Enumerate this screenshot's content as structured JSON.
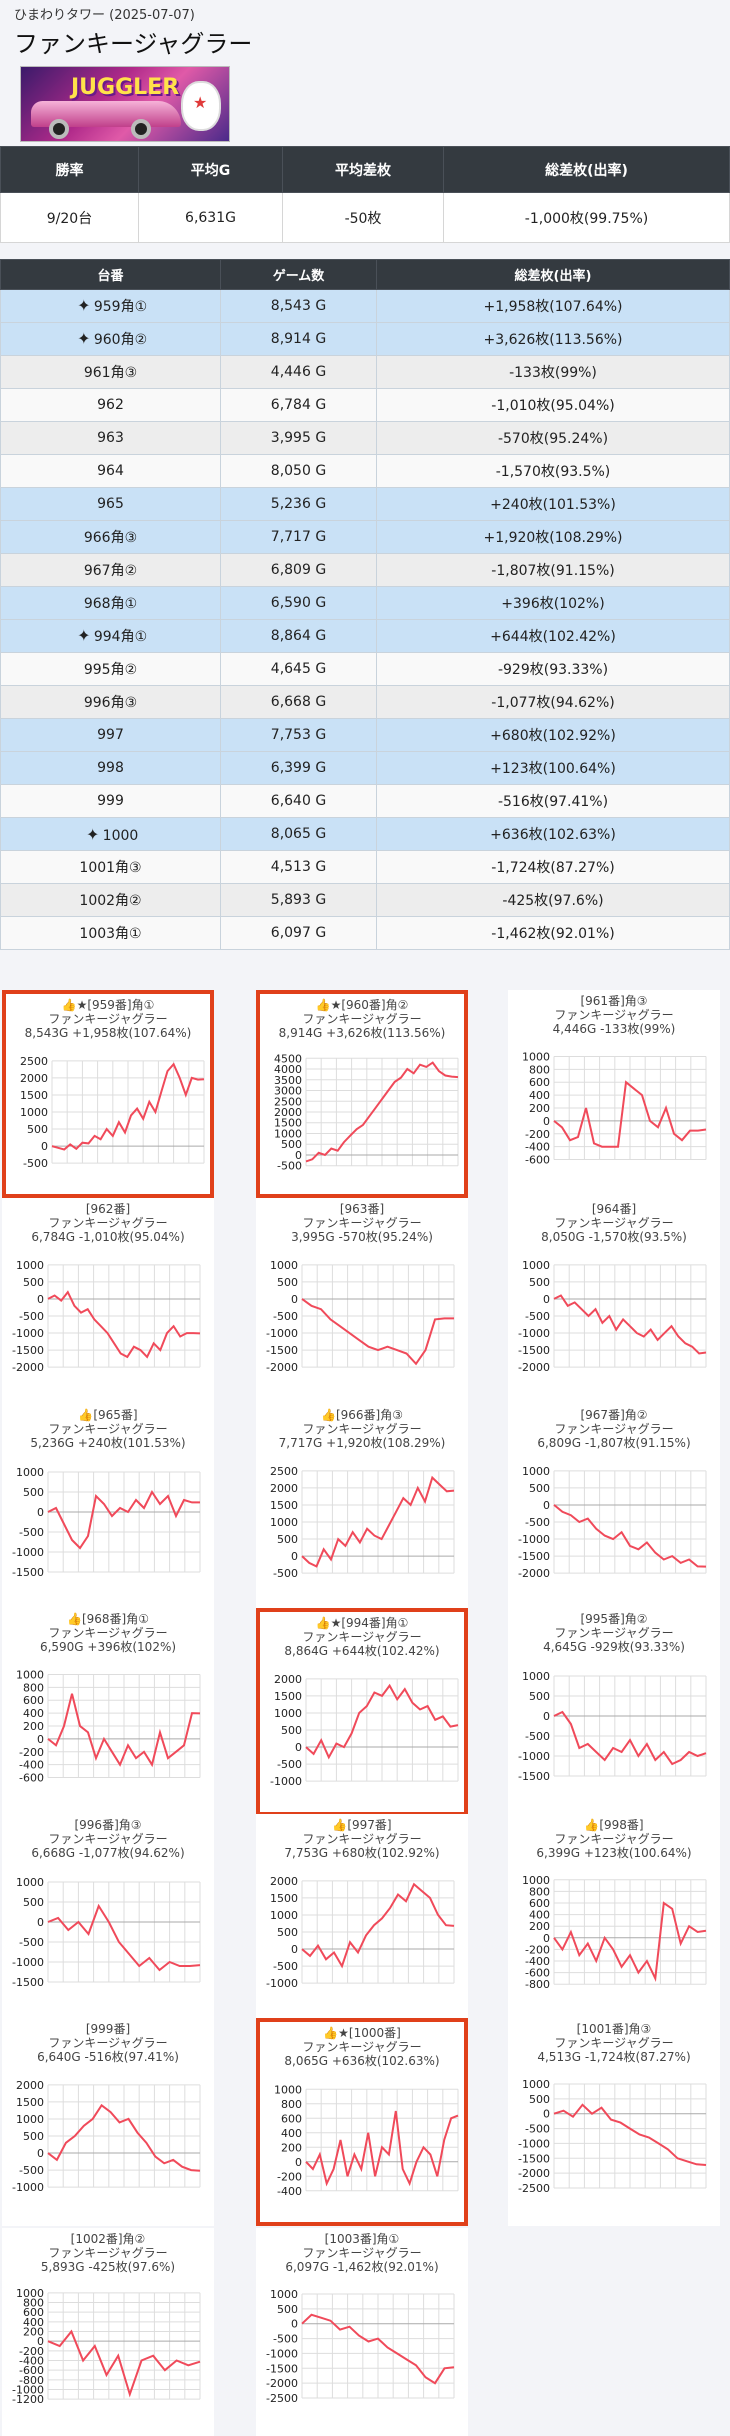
{
  "header": {
    "subtitle": "ひまわりタワー (2025-07-07)",
    "title": "ファンキージャグラー"
  },
  "summary": {
    "headers": [
      "勝率",
      "平均G",
      "平均差枚",
      "総差枚(出率)"
    ],
    "values": [
      "9/20台",
      "6,631G",
      "-50枚",
      "-1,000枚(99.75%)"
    ]
  },
  "detail": {
    "headers": [
      "台番",
      "ゲーム数",
      "総差枚(出率)"
    ],
    "rows": [
      {
        "name": "959角①",
        "games": "8,543 G",
        "diff": "+1,958枚(107.64%)",
        "spark": true,
        "pos": true
      },
      {
        "name": "960角②",
        "games": "8,914 G",
        "diff": "+3,626枚(113.56%)",
        "spark": true,
        "pos": true
      },
      {
        "name": "961角③",
        "games": "4,446 G",
        "diff": "-133枚(99%)",
        "spark": false,
        "pos": false
      },
      {
        "name": "962",
        "games": "6,784 G",
        "diff": "-1,010枚(95.04%)",
        "spark": false,
        "pos": false
      },
      {
        "name": "963",
        "games": "3,995 G",
        "diff": "-570枚(95.24%)",
        "spark": false,
        "pos": false
      },
      {
        "name": "964",
        "games": "8,050 G",
        "diff": "-1,570枚(93.5%)",
        "spark": false,
        "pos": false
      },
      {
        "name": "965",
        "games": "5,236 G",
        "diff": "+240枚(101.53%)",
        "spark": false,
        "pos": true
      },
      {
        "name": "966角③",
        "games": "7,717 G",
        "diff": "+1,920枚(108.29%)",
        "spark": false,
        "pos": true
      },
      {
        "name": "967角②",
        "games": "6,809 G",
        "diff": "-1,807枚(91.15%)",
        "spark": false,
        "pos": false
      },
      {
        "name": "968角①",
        "games": "6,590 G",
        "diff": "+396枚(102%)",
        "spark": false,
        "pos": true
      },
      {
        "name": "994角①",
        "games": "8,864 G",
        "diff": "+644枚(102.42%)",
        "spark": true,
        "pos": true
      },
      {
        "name": "995角②",
        "games": "4,645 G",
        "diff": "-929枚(93.33%)",
        "spark": false,
        "pos": false
      },
      {
        "name": "996角③",
        "games": "6,668 G",
        "diff": "-1,077枚(94.62%)",
        "spark": false,
        "pos": false
      },
      {
        "name": "997",
        "games": "7,753 G",
        "diff": "+680枚(102.92%)",
        "spark": false,
        "pos": true
      },
      {
        "name": "998",
        "games": "6,399 G",
        "diff": "+123枚(100.64%)",
        "spark": false,
        "pos": true
      },
      {
        "name": "999",
        "games": "6,640 G",
        "diff": "-516枚(97.41%)",
        "spark": false,
        "pos": false
      },
      {
        "name": "1000",
        "games": "8,065 G",
        "diff": "+636枚(102.63%)",
        "spark": true,
        "pos": true
      },
      {
        "name": "1001角③",
        "games": "4,513 G",
        "diff": "-1,724枚(87.27%)",
        "spark": false,
        "pos": false
      },
      {
        "name": "1002角②",
        "games": "5,893 G",
        "diff": "-425枚(97.6%)",
        "spark": false,
        "pos": false
      },
      {
        "name": "1003角①",
        "games": "6,097 G",
        "diff": "-1,462枚(92.01%)",
        "spark": false,
        "pos": false
      }
    ]
  },
  "colors": {
    "line": "#f04a5a",
    "highlight": "#e0401a",
    "positive_row": "#c9e1f6",
    "header_bg": "#343a40"
  },
  "chart_data": [
    {
      "type": "line",
      "title": "👍★[959番]角①",
      "subtitle": "ファンキージャグラー",
      "stats": "8,543G +1,958枚(107.64%)",
      "highlight": true,
      "yticks": [
        2500,
        2000,
        1500,
        1000,
        500,
        0,
        -500
      ],
      "ylim": [
        -700,
        2700
      ],
      "values": [
        0,
        -50,
        -100,
        50,
        -80,
        100,
        80,
        300,
        200,
        500,
        300,
        700,
        400,
        900,
        1100,
        800,
        1300,
        1000,
        1600,
        2200,
        2400,
        2000,
        1500,
        2000,
        1950,
        1958
      ]
    },
    {
      "type": "line",
      "title": "👍★[960番]角②",
      "subtitle": "ファンキージャグラー",
      "stats": "8,914G +3,626枚(113.56%)",
      "highlight": true,
      "yticks": [
        4500,
        4000,
        3500,
        3000,
        2500,
        2000,
        1500,
        1000,
        500,
        0,
        -500
      ],
      "ylim": [
        -700,
        4700
      ],
      "values": [
        -300,
        -200,
        100,
        0,
        300,
        200,
        600,
        900,
        1200,
        1400,
        1800,
        2200,
        2600,
        3000,
        3400,
        3600,
        4000,
        3800,
        4200,
        4100,
        4300,
        3900,
        3700,
        3650,
        3626
      ]
    },
    {
      "type": "line",
      "title": "[961番]角③",
      "subtitle": "ファンキージャグラー",
      "stats": "4,446G -133枚(99%)",
      "highlight": false,
      "yticks": [
        1000,
        800,
        600,
        400,
        200,
        0,
        -200,
        -400,
        -600
      ],
      "ylim": [
        -700,
        1100
      ],
      "values": [
        0,
        -100,
        -300,
        -250,
        200,
        -350,
        -400,
        -400,
        -400,
        600,
        500,
        400,
        0,
        -100,
        200,
        -200,
        -300,
        -150,
        -150,
        -133
      ]
    },
    {
      "type": "line",
      "title": "[962番]",
      "subtitle": "ファンキージャグラー",
      "stats": "6,784G -1,010枚(95.04%)",
      "highlight": false,
      "yticks": [
        1000,
        500,
        0,
        -500,
        -1000,
        -1500,
        -2000
      ],
      "ylim": [
        -2200,
        1200
      ],
      "values": [
        0,
        100,
        -50,
        200,
        -200,
        -400,
        -300,
        -600,
        -800,
        -1000,
        -1300,
        -1600,
        -1700,
        -1400,
        -1500,
        -1700,
        -1300,
        -1500,
        -1000,
        -800,
        -1100,
        -1000,
        -1000,
        -1010
      ]
    },
    {
      "type": "line",
      "title": "[963番]",
      "subtitle": "ファンキージャグラー",
      "stats": "3,995G -570枚(95.24%)",
      "highlight": false,
      "yticks": [
        1000,
        500,
        0,
        -500,
        -1000,
        -1500,
        -2000
      ],
      "ylim": [
        -2200,
        1200
      ],
      "values": [
        0,
        -200,
        -300,
        -600,
        -800,
        -1000,
        -1200,
        -1400,
        -1500,
        -1400,
        -1500,
        -1600,
        -1900,
        -1500,
        -600,
        -570,
        -570
      ]
    },
    {
      "type": "line",
      "title": "[964番]",
      "subtitle": "ファンキージャグラー",
      "stats": "8,050G -1,570枚(93.5%)",
      "highlight": false,
      "yticks": [
        1000,
        500,
        0,
        -500,
        -1000,
        -1500,
        -2000
      ],
      "ylim": [
        -2200,
        1200
      ],
      "values": [
        0,
        100,
        -200,
        -100,
        -300,
        -500,
        -300,
        -700,
        -500,
        -900,
        -600,
        -800,
        -1000,
        -1100,
        -900,
        -1200,
        -1000,
        -800,
        -1100,
        -1300,
        -1400,
        -1600,
        -1570
      ]
    },
    {
      "type": "line",
      "title": "👍[965番]",
      "subtitle": "ファンキージャグラー",
      "stats": "5,236G +240枚(101.53%)",
      "highlight": false,
      "yticks": [
        1000,
        500,
        0,
        -500,
        -1000,
        -1500
      ],
      "ylim": [
        -1700,
        1200
      ],
      "values": [
        0,
        100,
        -300,
        -700,
        -900,
        -600,
        400,
        200,
        -100,
        100,
        0,
        300,
        100,
        500,
        200,
        400,
        -100,
        300,
        240,
        240
      ]
    },
    {
      "type": "line",
      "title": "👍[966番]角③",
      "subtitle": "ファンキージャグラー",
      "stats": "7,717G +1,920枚(108.29%)",
      "highlight": false,
      "yticks": [
        2500,
        2000,
        1500,
        1000,
        500,
        0,
        -500
      ],
      "ylim": [
        -700,
        2700
      ],
      "values": [
        0,
        -200,
        -300,
        200,
        -100,
        500,
        300,
        700,
        400,
        800,
        600,
        500,
        900,
        1300,
        1700,
        1500,
        2000,
        1600,
        2300,
        2100,
        1900,
        1920
      ]
    },
    {
      "type": "line",
      "title": "[967番]角②",
      "subtitle": "ファンキージャグラー",
      "stats": "6,809G -1,807枚(91.15%)",
      "highlight": false,
      "yticks": [
        1000,
        500,
        0,
        -500,
        -1000,
        -1500,
        -2000
      ],
      "ylim": [
        -2200,
        1200
      ],
      "values": [
        0,
        -200,
        -300,
        -500,
        -400,
        -700,
        -900,
        -1000,
        -800,
        -1200,
        -1300,
        -1100,
        -1400,
        -1600,
        -1500,
        -1700,
        -1600,
        -1800,
        -1807
      ]
    },
    {
      "type": "line",
      "title": "👍[968番]角①",
      "subtitle": "ファンキージャグラー",
      "stats": "6,590G +396枚(102%)",
      "highlight": false,
      "yticks": [
        1000,
        800,
        600,
        400,
        200,
        0,
        -200,
        -400,
        -600
      ],
      "ylim": [
        -700,
        1100
      ],
      "values": [
        0,
        -100,
        200,
        700,
        200,
        100,
        -300,
        0,
        -200,
        -400,
        -100,
        -300,
        -200,
        -400,
        100,
        -300,
        -200,
        -100,
        400,
        396
      ]
    },
    {
      "type": "line",
      "title": "👍★[994番]角①",
      "subtitle": "ファンキージャグラー",
      "stats": "8,864G +644枚(102.42%)",
      "highlight": true,
      "yticks": [
        2000,
        1500,
        1000,
        500,
        0,
        -500,
        -1000
      ],
      "ylim": [
        -1200,
        2200
      ],
      "values": [
        0,
        -200,
        200,
        -300,
        100,
        0,
        400,
        1000,
        1200,
        1600,
        1500,
        1800,
        1400,
        1700,
        1300,
        1100,
        1200,
        800,
        900,
        600,
        644
      ]
    },
    {
      "type": "line",
      "title": "[995番]角②",
      "subtitle": "ファンキージャグラー",
      "stats": "4,645G -929枚(93.33%)",
      "highlight": false,
      "yticks": [
        1000,
        500,
        0,
        -500,
        -1000,
        -1500
      ],
      "ylim": [
        -1700,
        1200
      ],
      "values": [
        0,
        100,
        -200,
        -800,
        -700,
        -900,
        -1100,
        -800,
        -900,
        -600,
        -1000,
        -700,
        -1100,
        -900,
        -1200,
        -1100,
        -900,
        -1000,
        -929
      ]
    },
    {
      "type": "line",
      "title": "[996番]角③",
      "subtitle": "ファンキージャグラー",
      "stats": "6,668G -1,077枚(94.62%)",
      "highlight": false,
      "yticks": [
        1000,
        500,
        0,
        -500,
        -1000,
        -1500
      ],
      "ylim": [
        -1700,
        1200
      ],
      "values": [
        0,
        100,
        -200,
        0,
        -300,
        400,
        0,
        -500,
        -800,
        -1100,
        -900,
        -1200,
        -1000,
        -1100,
        -1100,
        -1077
      ]
    },
    {
      "type": "line",
      "title": "👍[997番]",
      "subtitle": "ファンキージャグラー",
      "stats": "7,753G +680枚(102.92%)",
      "highlight": false,
      "yticks": [
        2000,
        1500,
        1000,
        500,
        0,
        -500,
        -1000
      ],
      "ylim": [
        -1200,
        2200
      ],
      "values": [
        0,
        -200,
        100,
        -300,
        -100,
        -500,
        200,
        -100,
        400,
        700,
        900,
        1200,
        1600,
        1400,
        1900,
        1700,
        1500,
        1000,
        700,
        680
      ]
    },
    {
      "type": "line",
      "title": "👍[998番]",
      "subtitle": "ファンキージャグラー",
      "stats": "6,399G +123枚(100.64%)",
      "highlight": false,
      "yticks": [
        1000,
        800,
        600,
        400,
        200,
        0,
        -200,
        -400,
        -600,
        -800
      ],
      "ylim": [
        -900,
        1100
      ],
      "values": [
        0,
        -200,
        100,
        -300,
        -100,
        -400,
        0,
        -200,
        -500,
        -300,
        -600,
        -400,
        -700,
        600,
        500,
        -100,
        200,
        100,
        123
      ]
    },
    {
      "type": "line",
      "title": "[999番]",
      "subtitle": "ファンキージャグラー",
      "stats": "6,640G -516枚(97.41%)",
      "highlight": false,
      "yticks": [
        2000,
        1500,
        1000,
        500,
        0,
        -500,
        -1000
      ],
      "ylim": [
        -1200,
        2200
      ],
      "values": [
        0,
        -200,
        300,
        500,
        800,
        1000,
        1400,
        1200,
        900,
        1000,
        600,
        300,
        -100,
        -300,
        -200,
        -400,
        -500,
        -516
      ]
    },
    {
      "type": "line",
      "title": "👍★[1000番]",
      "subtitle": "ファンキージャグラー",
      "stats": "8,065G +636枚(102.63%)",
      "highlight": true,
      "yticks": [
        1000,
        800,
        600,
        400,
        200,
        0,
        -200,
        -400
      ],
      "ylim": [
        -500,
        1100
      ],
      "values": [
        0,
        -100,
        100,
        -300,
        -100,
        300,
        -200,
        100,
        -100,
        400,
        -200,
        200,
        100,
        700,
        -100,
        -300,
        0,
        200,
        100,
        -200,
        300,
        600,
        636
      ]
    },
    {
      "type": "line",
      "title": "[1001番]角③",
      "subtitle": "ファンキージャグラー",
      "stats": "4,513G -1,724枚(87.27%)",
      "highlight": false,
      "yticks": [
        1000,
        500,
        0,
        -500,
        -1000,
        -1500,
        -2000,
        -2500
      ],
      "ylim": [
        -2700,
        1200
      ],
      "values": [
        0,
        100,
        -100,
        300,
        0,
        200,
        -200,
        -300,
        -500,
        -700,
        -800,
        -1000,
        -1200,
        -1500,
        -1600,
        -1700,
        -1724
      ]
    },
    {
      "type": "line",
      "title": "[1002番]角②",
      "subtitle": "ファンキージャグラー",
      "stats": "5,893G -425枚(97.6%)",
      "highlight": false,
      "yticks": [
        1000,
        800,
        600,
        400,
        200,
        0,
        -200,
        -400,
        -600,
        -800,
        -1000,
        -1200
      ],
      "ylim": [
        -1300,
        1100
      ],
      "values": [
        0,
        -100,
        200,
        -400,
        -100,
        -700,
        -300,
        -1100,
        -400,
        -300,
        -600,
        -400,
        -500,
        -425
      ]
    },
    {
      "type": "line",
      "title": "[1003番]角①",
      "subtitle": "ファンキージャグラー",
      "stats": "6,097G -1,462枚(92.01%)",
      "highlight": false,
      "yticks": [
        1000,
        500,
        0,
        -500,
        -1000,
        -1500,
        -2000,
        -2500
      ],
      "ylim": [
        -2700,
        1200
      ],
      "values": [
        0,
        300,
        200,
        100,
        -200,
        -100,
        -400,
        -600,
        -500,
        -800,
        -1000,
        -1200,
        -1400,
        -1800,
        -2000,
        -1500,
        -1462
      ]
    }
  ]
}
